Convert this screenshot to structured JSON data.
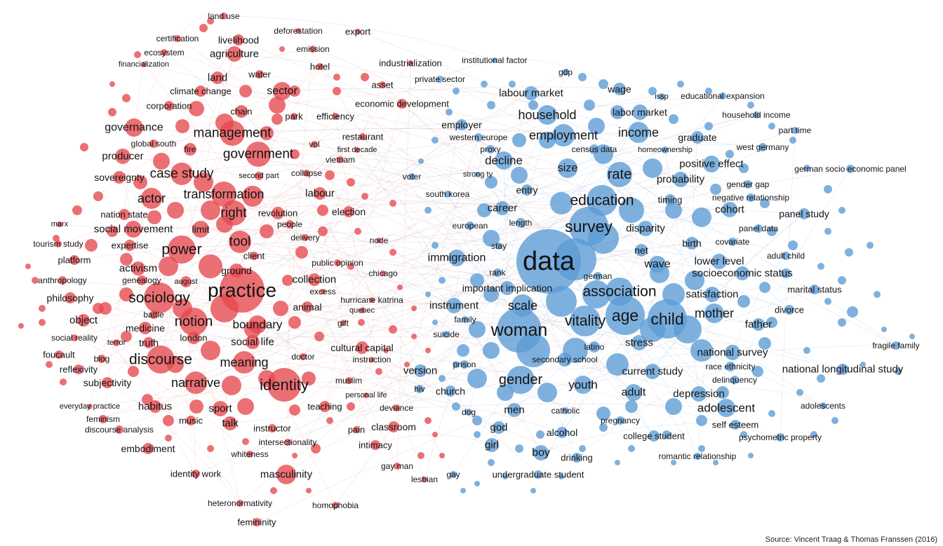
{
  "colors": {
    "cluster_red": "#e5484d",
    "cluster_blue": "#5b9bd5",
    "edge": "#c9a7b4"
  },
  "source_note": "Source: Vincent Traag & Thomas Franssen (2016)",
  "terms": {
    "red": [
      "land use",
      "deforestation",
      "export",
      "certification",
      "livelihood",
      "emission",
      "ecosystem",
      "agriculture",
      "industrialization",
      "financialization",
      "hotel",
      "land",
      "water",
      "asset",
      "climate change",
      "sector",
      "corporation",
      "chain",
      "economic development",
      "park",
      "efficiency",
      "governance",
      "management",
      "restaurant",
      "global south",
      "vol",
      "fire",
      "first decade",
      "producer",
      "government",
      "vietnam",
      "case study",
      "second part",
      "collapse",
      "sovereignty",
      "labour",
      "actor",
      "transformation",
      "nation state",
      "right",
      "revolution",
      "election",
      "marx",
      "limit",
      "people",
      "social movement",
      "tool",
      "delivery",
      "tourism study",
      "expertise",
      "power",
      "node",
      "client",
      "platform",
      "activism",
      "ground",
      "public opinion",
      "anthropology",
      "genealogy",
      "august",
      "collection",
      "practice",
      "chicago",
      "philosophy",
      "sociology",
      "excess",
      "battle",
      "animal",
      "hurricane katrina",
      "quebec",
      "object",
      "notion",
      "boundary",
      "medicine",
      "gift",
      "social reality",
      "terror",
      "truth",
      "london",
      "social life",
      "cultural capital",
      "foucault",
      "blog",
      "discourse",
      "doctor",
      "instruction",
      "reflexivity",
      "meaning",
      "subjectivity",
      "narrative",
      "identity",
      "muslim",
      "personal life",
      "everyday practice",
      "habitus",
      "teaching",
      "deviance",
      "sport",
      "feminism",
      "music",
      "talk",
      "discourse analysis",
      "instructor",
      "pain",
      "classroom",
      "intersectionality",
      "embodiment",
      "intimacy",
      "whiteness",
      "gay man",
      "identity work",
      "masculinity",
      "lesbian",
      "heteronormativity",
      "homophobia",
      "femininity"
    ],
    "blue": [
      "institutional factor",
      "gdp",
      "private sector",
      "wage",
      "labour market",
      "issp",
      "educational expansion",
      "household",
      "labor market",
      "household income",
      "employer",
      "income",
      "part time",
      "western europe",
      "employment",
      "graduate",
      "proxy",
      "census data",
      "homeownership",
      "west germany",
      "decline",
      "positive effect",
      "size",
      "german socio economic panel",
      "strong ty",
      "voter",
      "rate",
      "probability",
      "gender gap",
      "south korea",
      "entry",
      "timing",
      "negative relationship",
      "education",
      "career",
      "cohort",
      "panel study",
      "european",
      "length",
      "survey",
      "disparity",
      "panel data",
      "birth",
      "covariate",
      "stay",
      "net",
      "adult child",
      "immigration",
      "data",
      "lower level",
      "wave",
      "rank",
      "socioeconomic status",
      "german",
      "marital status",
      "important implication",
      "association",
      "satisfaction",
      "instrument",
      "scale",
      "divorce",
      "age",
      "child",
      "mother",
      "vitality",
      "family",
      "father",
      "suicide",
      "woman",
      "stress",
      "fragile family",
      "latino",
      "national survey",
      "prison",
      "secondary school",
      "race ethnicity",
      "current study",
      "national longitudinal study",
      "gender",
      "delinquency",
      "hiv",
      "version",
      "youth",
      "church",
      "adult",
      "depression",
      "adolescent",
      "adolescents",
      "dog",
      "men",
      "catholic",
      "pregnancy",
      "self esteem",
      "god",
      "alcohol",
      "college student",
      "psychometric property",
      "girl",
      "boy",
      "drinking",
      "romantic relationship",
      "gay",
      "undergraduate student"
    ]
  }
}
